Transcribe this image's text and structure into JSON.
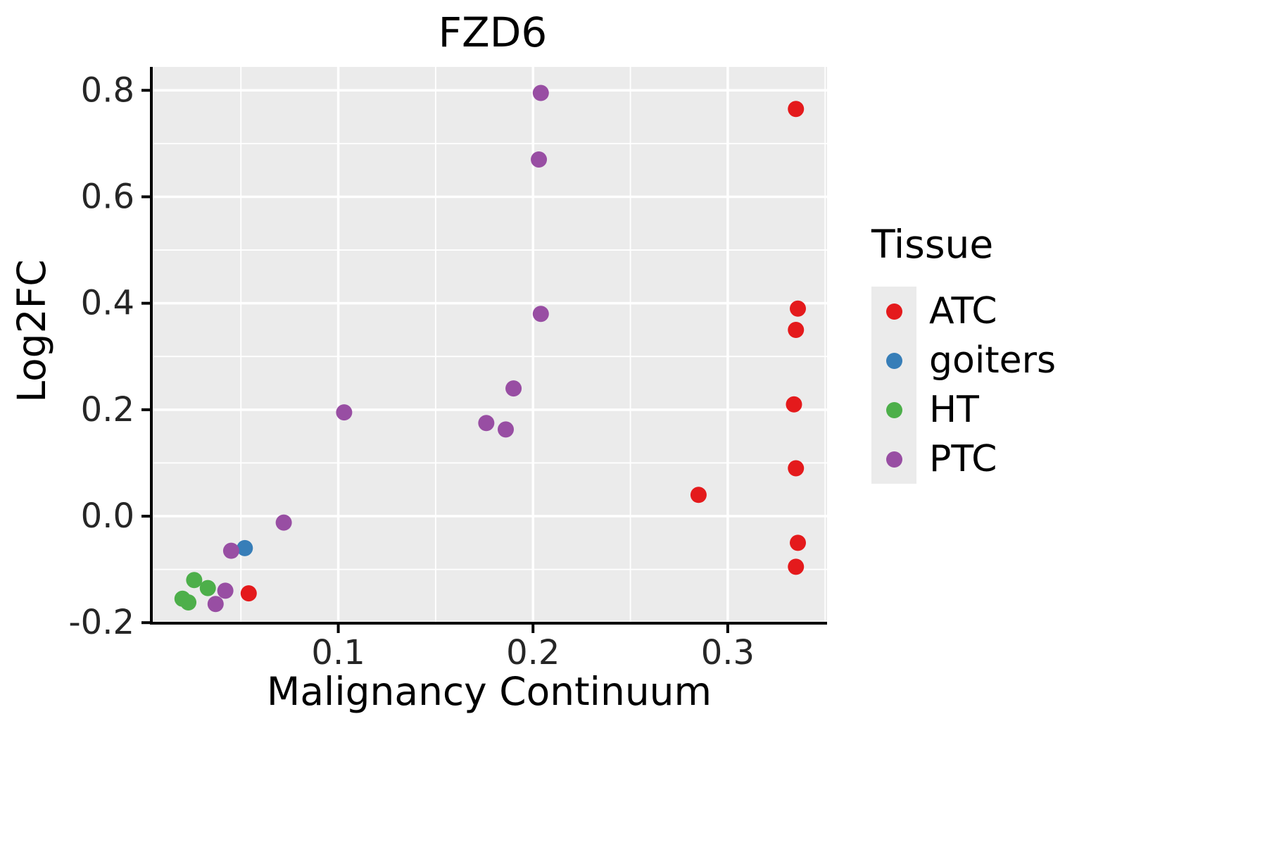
{
  "chart_data": {
    "type": "scatter",
    "title": "FZD6",
    "xlabel": "Malignancy Continuum",
    "ylabel": "Log2FC",
    "xlim": [
      0.004,
      0.351
    ],
    "ylim": [
      -0.201,
      0.844
    ],
    "panel_bg": "#EBEBEB",
    "grid_color": "#FFFFFF",
    "grid": true,
    "point_radius": 11.5,
    "x_ticks": {
      "values": [
        0.1,
        0.2,
        0.3
      ],
      "labels": [
        "0.1",
        "0.2",
        "0.3"
      ],
      "minor": [
        0.05,
        0.15,
        0.25,
        0.35
      ]
    },
    "y_ticks": {
      "values": [
        0.8,
        0.6,
        0.4,
        0.2,
        0.0,
        -0.2
      ],
      "labels": [
        "0.8",
        "0.6",
        "0.4",
        "0.2",
        "0.0",
        "-0.2"
      ],
      "minor": [
        0.7,
        0.5,
        0.3,
        0.1,
        -0.1
      ]
    },
    "series": [
      {
        "name": "ATC",
        "color": "#E41A1C",
        "points": [
          [
            0.335,
            0.765
          ],
          [
            0.336,
            0.39
          ],
          [
            0.335,
            0.35
          ],
          [
            0.334,
            0.21
          ],
          [
            0.335,
            0.09
          ],
          [
            0.285,
            0.04
          ],
          [
            0.336,
            -0.05
          ],
          [
            0.335,
            -0.095
          ],
          [
            0.054,
            -0.145
          ]
        ]
      },
      {
        "name": "goiters",
        "color": "#377EB8",
        "points": [
          [
            0.052,
            -0.06
          ]
        ]
      },
      {
        "name": "HT",
        "color": "#4DAF4A",
        "points": [
          [
            0.026,
            -0.12
          ],
          [
            0.033,
            -0.135
          ],
          [
            0.02,
            -0.155
          ],
          [
            0.023,
            -0.162
          ]
        ]
      },
      {
        "name": "PTC",
        "color": "#984EA3",
        "points": [
          [
            0.204,
            0.795
          ],
          [
            0.203,
            0.67
          ],
          [
            0.204,
            0.38
          ],
          [
            0.19,
            0.24
          ],
          [
            0.176,
            0.175
          ],
          [
            0.186,
            0.163
          ],
          [
            0.103,
            0.195
          ],
          [
            0.072,
            -0.012
          ],
          [
            0.045,
            -0.065
          ],
          [
            0.042,
            -0.14
          ],
          [
            0.037,
            -0.165
          ]
        ]
      }
    ],
    "legend": {
      "title": "Tissue",
      "position": "right",
      "items": [
        {
          "label": "ATC",
          "color": "#E41A1C"
        },
        {
          "label": "goiters",
          "color": "#377EB8"
        },
        {
          "label": "HT",
          "color": "#4DAF4A"
        },
        {
          "label": "PTC",
          "color": "#984EA3"
        }
      ]
    }
  }
}
